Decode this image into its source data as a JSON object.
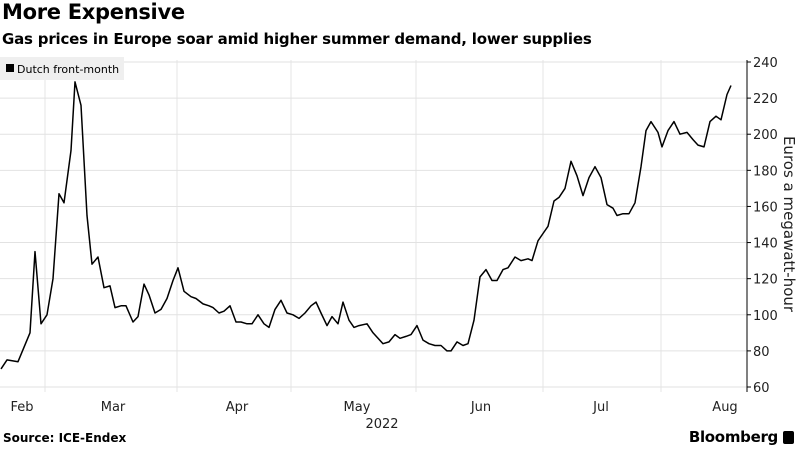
{
  "title": "More Expensive",
  "subtitle": "Gas prices in Europe soar amid higher summer demand, lower supplies",
  "source": "Source: ICE-Endex",
  "brand": "Bloomberg",
  "chart_data": {
    "type": "line",
    "title": "More Expensive",
    "subtitle": "Gas prices in Europe soar amid higher summer demand, lower supplies",
    "xlabel": "2022",
    "ylabel": "Euros a megawatt-hour",
    "x_unit": "days since Feb 1, 2022",
    "ylim": [
      60,
      240
    ],
    "yticks": [
      60,
      80,
      100,
      120,
      140,
      160,
      180,
      200,
      220,
      240
    ],
    "xticks": [
      {
        "label": "Feb",
        "day": 0
      },
      {
        "label": "Mar",
        "day": 28
      },
      {
        "label": "Apr",
        "day": 59
      },
      {
        "label": "May",
        "day": 89
      },
      {
        "label": "Jun",
        "day": 120
      },
      {
        "label": "Jul",
        "day": 150
      },
      {
        "label": "Aug",
        "day": 181
      }
    ],
    "grid": true,
    "legend": {
      "position": "top-left",
      "entries": [
        "Dutch front-month"
      ]
    },
    "series": [
      {
        "name": "Dutch front-month",
        "color": "#000000",
        "x": [
          0,
          1.5,
          4.25,
          7.25,
          8.5,
          10,
          11.5,
          13,
          14.5,
          15.75,
          17.5,
          18.5,
          20,
          21.5,
          22.75,
          24.25,
          25.75,
          27.25,
          28.5,
          30,
          31.25,
          33,
          34.25,
          35.75,
          37,
          38.5,
          40,
          41.5,
          43,
          44.25,
          45.75,
          47.5,
          48.75,
          50.5,
          52,
          53,
          54.5,
          55.75,
          57.25,
          58.75,
          60,
          61.5,
          62.75,
          64.25,
          65.75,
          67,
          68.5,
          70,
          71.5,
          73,
          74.5,
          76,
          77.5,
          78.75,
          80,
          81.5,
          82.75,
          84.25,
          85.5,
          87,
          88.25,
          89.5,
          91.5,
          93,
          95.5,
          97,
          98.5,
          99.75,
          101.25,
          102.5,
          104,
          105.5,
          107,
          108.5,
          110,
          111.5,
          112.5,
          114,
          115.5,
          116.75,
          118.25,
          119.75,
          121.25,
          122.75,
          124,
          125.5,
          126.75,
          128.5,
          130,
          131.75,
          132.75,
          134.25,
          135.5,
          136.75,
          138.25,
          139.5,
          141,
          142.5,
          144,
          145.5,
          147,
          148.5,
          150,
          151.5,
          153,
          154,
          155.5,
          157,
          158.5,
          160,
          161.25,
          162.5,
          164.25,
          165.25,
          166.75,
          168.25,
          169.75,
          171.5,
          173,
          174.25,
          175.75,
          177.25,
          178.75,
          180,
          181.5,
          182.5
        ],
        "values": [
          70,
          75,
          74,
          90,
          135,
          95,
          100,
          120,
          167,
          162,
          191,
          229,
          216,
          155,
          128,
          132,
          115,
          116,
          104,
          105,
          105,
          96,
          99,
          117,
          111,
          101,
          103,
          109,
          119,
          126,
          113,
          110,
          109,
          106,
          105,
          104,
          101,
          102,
          105,
          96,
          96,
          95,
          95,
          100,
          95,
          93,
          103,
          108,
          101,
          100,
          98,
          101,
          105,
          107,
          101,
          94,
          99,
          95,
          107,
          97,
          93,
          94,
          95,
          90,
          84,
          85,
          89,
          87,
          88,
          89,
          94,
          86,
          84,
          83,
          83,
          80,
          80,
          85,
          83,
          84,
          97,
          121,
          125,
          119,
          119,
          125,
          126,
          132,
          130,
          131,
          130,
          141,
          145,
          149,
          163,
          165,
          170,
          185,
          177,
          166,
          176,
          182,
          176,
          161,
          159,
          155,
          156,
          156,
          162,
          182,
          202,
          207,
          201,
          193,
          202,
          207,
          200,
          201,
          197,
          194,
          193,
          207,
          210,
          208,
          222,
          227
        ]
      }
    ]
  }
}
